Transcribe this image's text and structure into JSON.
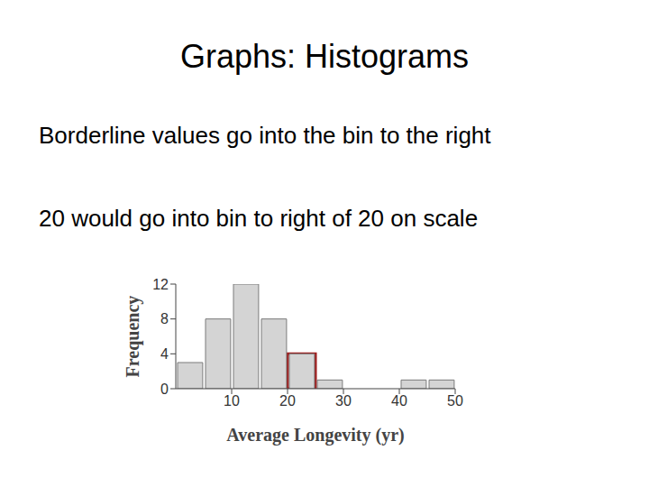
{
  "slide_title": "Graphs: Histograms",
  "lines": [
    "Borderline values go into the bin to the right",
    "20 would go into bin to right of 20 on scale"
  ],
  "chart_data": {
    "type": "histogram",
    "bins": [
      0,
      5,
      10,
      15,
      20,
      25,
      30,
      35,
      40,
      45,
      50
    ],
    "counts": [
      3,
      8,
      12,
      8,
      4,
      1,
      0,
      0,
      1,
      1
    ],
    "color": "#d4d4d4",
    "xlabel": "Average Longevity (yr)",
    "ylabel": "Frequency",
    "xlim": [
      0,
      50
    ],
    "ylim": [
      0,
      12
    ],
    "xticks": [
      10,
      20,
      30,
      40,
      50
    ],
    "yticks": [
      0,
      4,
      8,
      12
    ],
    "grid": false,
    "highlight": {
      "bins": [
        20,
        25
      ],
      "color": "#a01c1c"
    }
  }
}
